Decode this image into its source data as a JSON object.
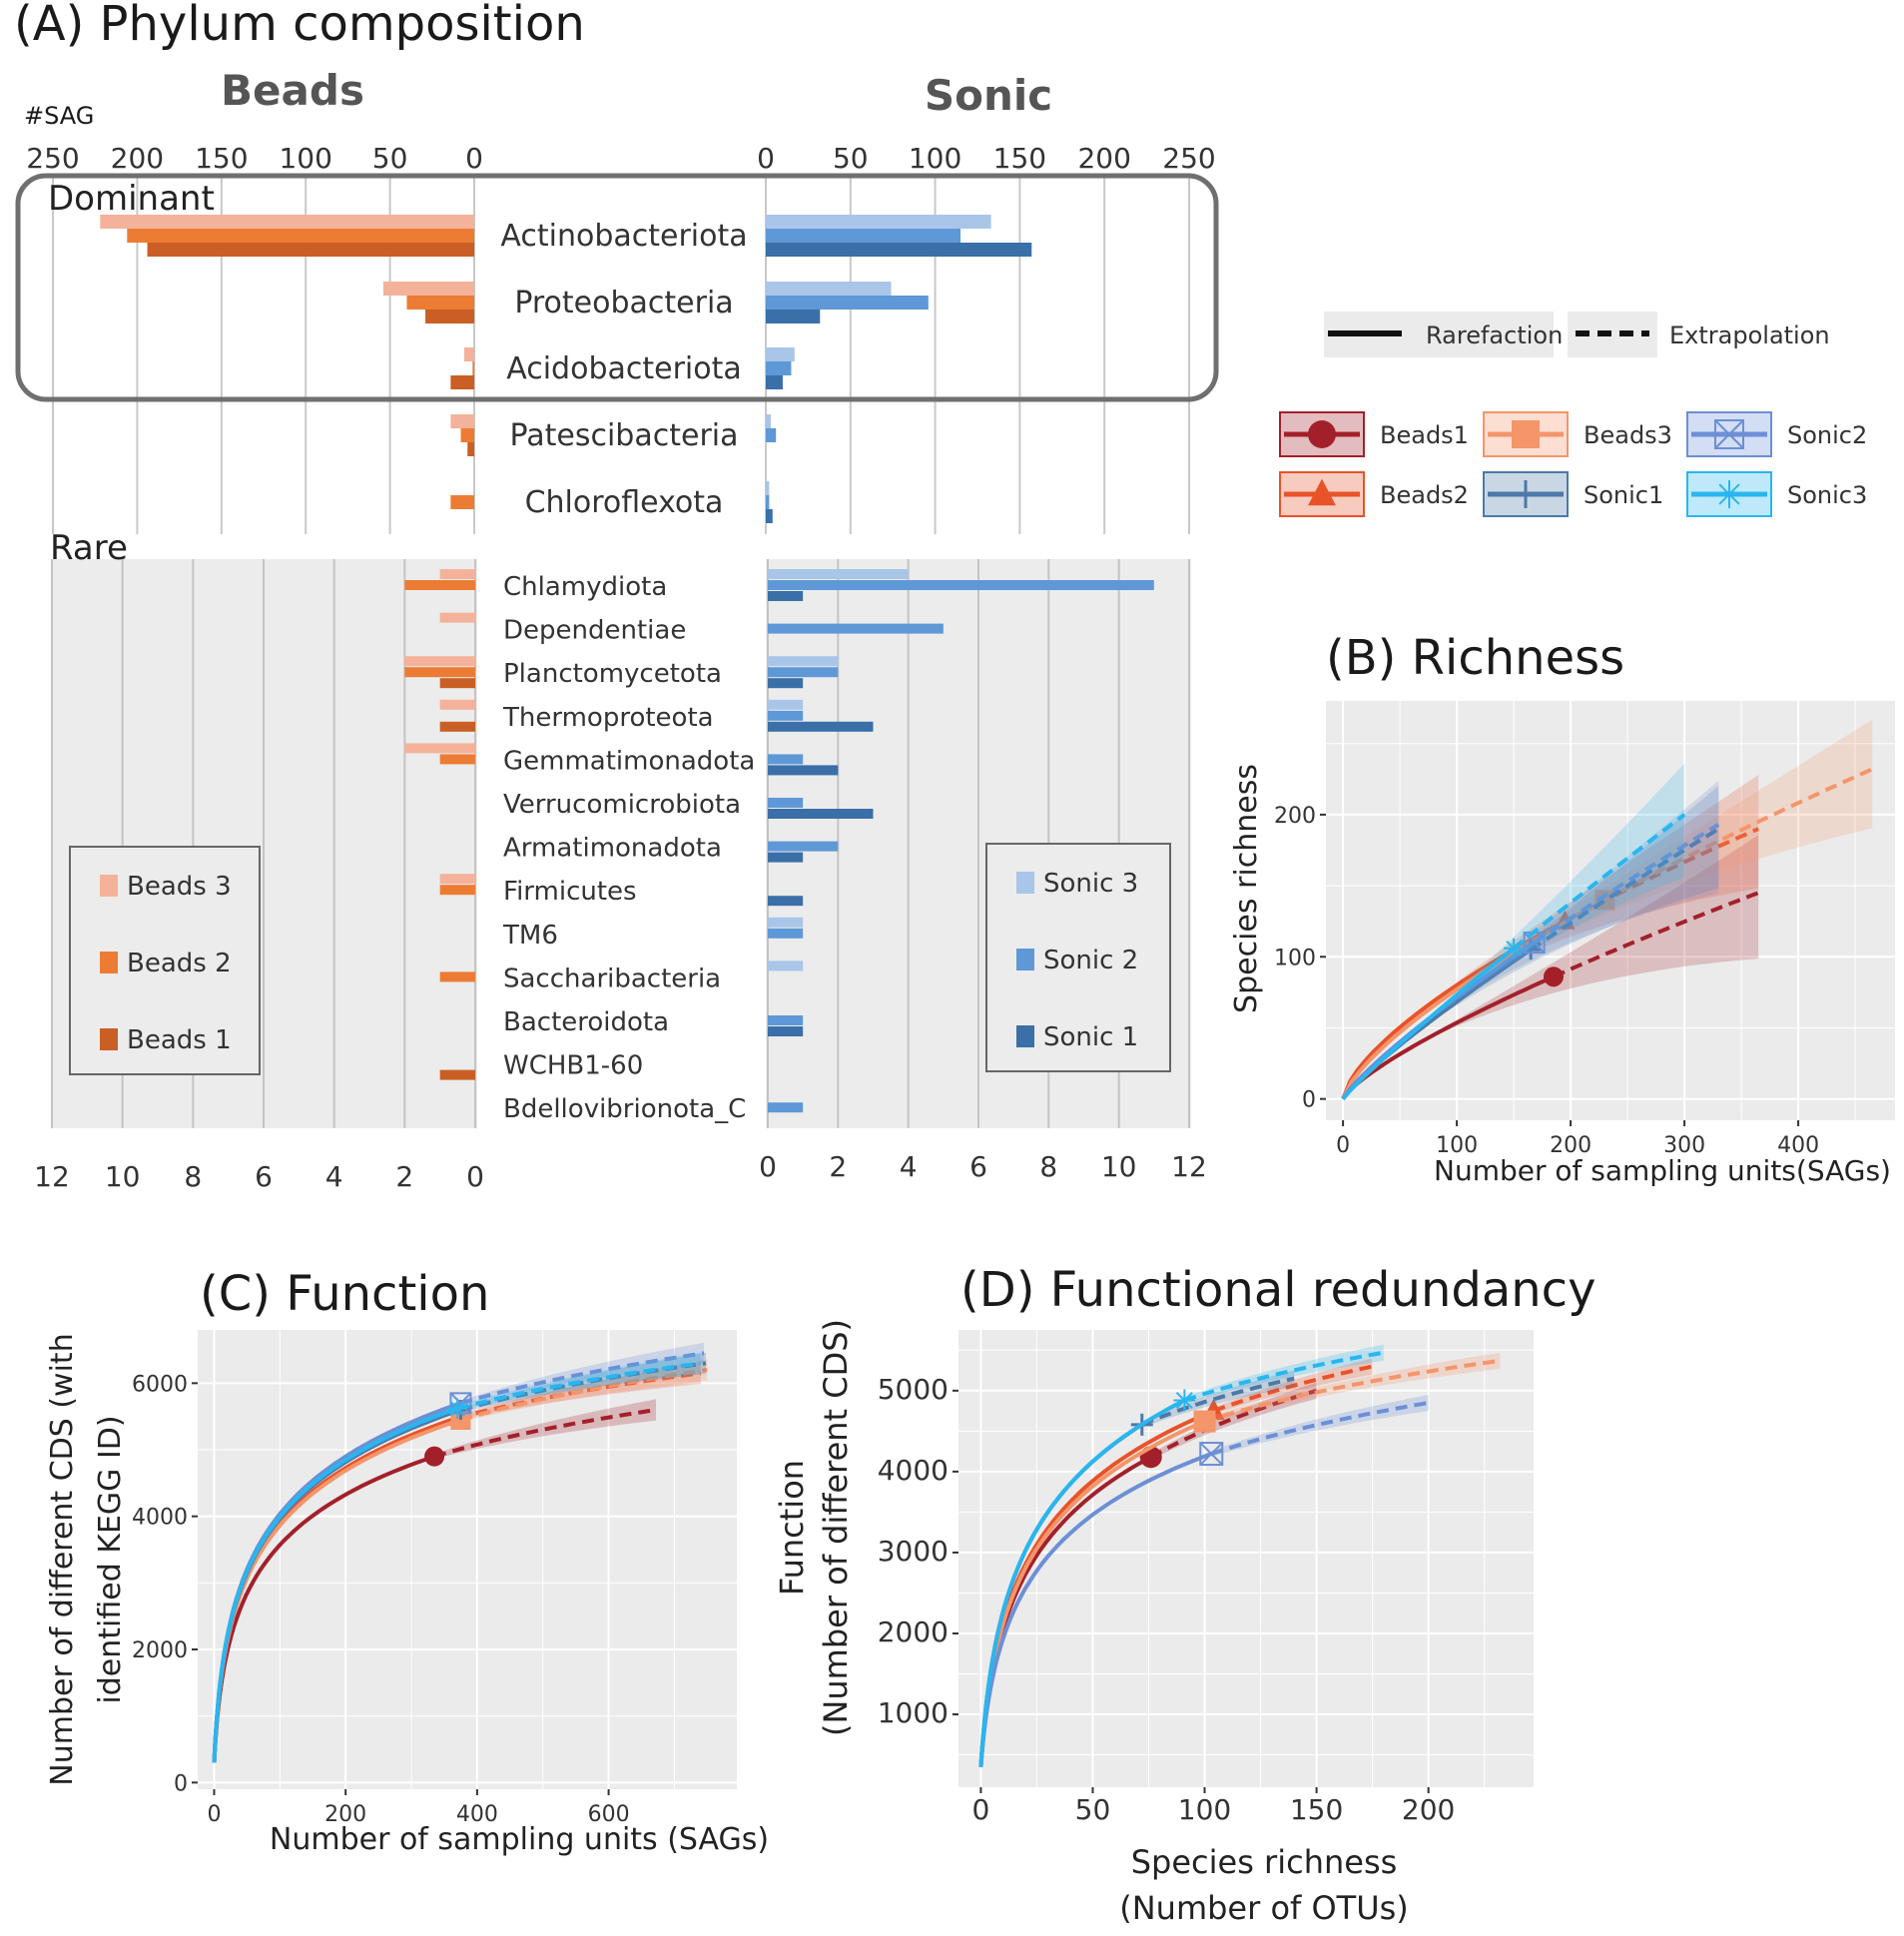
{
  "chart_data": [
    {
      "id": "A",
      "type": "bar",
      "title": "(A) Phylum composition",
      "unit_label": "#SAG",
      "groups": [
        "Beads",
        "Sonic"
      ],
      "sections": [
        "Dominant",
        "Rare"
      ],
      "dominant": {
        "categories": [
          "Actinobacteriota",
          "Proteobacteria",
          "Acidobacteriota",
          "Patescibacteria",
          "Chloroflexota"
        ],
        "ticks": [
          "250",
          "200",
          "150",
          "100",
          "50",
          "0"
        ],
        "ticks_right": [
          "0",
          "50",
          "100",
          "150",
          "200",
          "250"
        ],
        "xlim": [
          0,
          250
        ],
        "beads": {
          "Beads 3": [
            222,
            54,
            6,
            14,
            0
          ],
          "Beads 2": [
            206,
            40,
            1,
            8,
            14
          ],
          "Beads 1": [
            194,
            29,
            14,
            4,
            0
          ]
        },
        "sonic": {
          "Sonic 3": [
            133,
            74,
            17,
            3,
            2
          ],
          "Sonic 2": [
            115,
            96,
            15,
            6,
            2
          ],
          "Sonic 1": [
            157,
            32,
            10,
            0,
            4
          ]
        }
      },
      "rare": {
        "categories": [
          "Chlamydiota",
          "Dependentiae",
          "Planctomycetota",
          "Thermoproteota",
          "Gemmatimonadota",
          "Verrucomicrobiota",
          "Armatimonadota",
          "Firmicutes",
          "TM6",
          "Saccharibacteria",
          "Bacteroidota",
          "WCHB1-60",
          "Bdellovibrionota_C"
        ],
        "ticks": [
          "12",
          "10",
          "8",
          "6",
          "4",
          "2",
          "0"
        ],
        "ticks_right": [
          "0",
          "2",
          "4",
          "6",
          "8",
          "10",
          "12"
        ],
        "xlim": [
          0,
          12
        ],
        "beads": {
          "Beads 3": [
            1,
            1,
            2,
            1,
            2,
            0,
            0,
            1,
            0,
            0,
            0,
            0,
            0
          ],
          "Beads 2": [
            2,
            0,
            2,
            0,
            1,
            0,
            0,
            1,
            0,
            1,
            0,
            0,
            0
          ],
          "Beads 1": [
            0,
            0,
            1,
            1,
            0,
            0,
            0,
            0,
            0,
            0,
            0,
            1,
            0
          ]
        },
        "sonic": {
          "Sonic 3": [
            4,
            0,
            2,
            1,
            0,
            0,
            0,
            0,
            1,
            1,
            0,
            0,
            0
          ],
          "Sonic 2": [
            11,
            5,
            2,
            1,
            1,
            1,
            2,
            0,
            1,
            0,
            1,
            0,
            1
          ],
          "Sonic 1": [
            1,
            0,
            1,
            3,
            2,
            3,
            1,
            1,
            0,
            0,
            1,
            0,
            0
          ]
        }
      },
      "legend_beads": [
        "Beads 3",
        "Beads 2",
        "Beads 1"
      ],
      "legend_sonic": [
        "Sonic 3",
        "Sonic 2",
        "Sonic 1"
      ],
      "colors": {
        "Beads 3": "#f4b29a",
        "Beads 2": "#ec7c33",
        "Beads 1": "#c95f24",
        "Sonic 3": "#a9c5e8",
        "Sonic 2": "#5f98d6",
        "Sonic 1": "#3a6fa8"
      }
    },
    {
      "id": "B",
      "type": "line",
      "title": "(B) Richness",
      "xlabel": "Number of sampling units(SAGs)",
      "ylabel": "Species richness",
      "xlim": [
        -15,
        485
      ],
      "ylim": [
        -15,
        280
      ],
      "xticks": [
        0,
        100,
        200,
        300,
        400
      ],
      "yticks": [
        0,
        100,
        200
      ],
      "series": [
        {
          "name": "Beads1",
          "color": "#a3202a",
          "n": 185,
          "obs": 86,
          "max_x": 365,
          "max_y": 145,
          "lo_frac": 0.32,
          "hi_frac": 0.28
        },
        {
          "name": "Beads2",
          "color": "#e8532a",
          "n": 195,
          "obs": 125,
          "max_x": 365,
          "max_y": 190,
          "lo_frac": 0.22,
          "hi_frac": 0.2
        },
        {
          "name": "Beads3",
          "color": "#f4956a",
          "n": 230,
          "obs": 140,
          "max_x": 465,
          "max_y": 232,
          "lo_frac": 0.18,
          "hi_frac": 0.15
        },
        {
          "name": "Sonic1",
          "color": "#4d79a8",
          "n": 165,
          "obs": 105,
          "max_x": 330,
          "max_y": 190,
          "lo_frac": 0.22,
          "hi_frac": 0.16
        },
        {
          "name": "Sonic2",
          "color": "#6c8fd6",
          "n": 168,
          "obs": 110,
          "max_x": 330,
          "max_y": 193,
          "lo_frac": 0.25,
          "hi_frac": 0.16
        },
        {
          "name": "Sonic3",
          "color": "#29b6ef",
          "n": 150,
          "obs": 106,
          "max_x": 300,
          "max_y": 200,
          "lo_frac": 0.22,
          "hi_frac": 0.18
        }
      ]
    },
    {
      "id": "C",
      "type": "line",
      "title": "(C) Function",
      "xlabel": "Number of sampling units (SAGs)",
      "ylabel_line1": "Number of different CDS (with",
      "ylabel_line2": "identified KEGG ID)",
      "xlim": [
        -25,
        795
      ],
      "ylim": [
        -100,
        6800
      ],
      "xticks": [
        0,
        200,
        400,
        600
      ],
      "yticks": [
        0,
        2000,
        4000,
        6000
      ],
      "series": [
        {
          "name": "Beads1",
          "color": "#a3202a",
          "n": 335,
          "obs": 4900,
          "max_x": 672,
          "max_y": 5600
        },
        {
          "name": "Beads2",
          "color": "#e8532a",
          "n": 370,
          "obs": 5480,
          "max_x": 740,
          "max_y": 6150
        },
        {
          "name": "Beads3",
          "color": "#f4956a",
          "n": 375,
          "obs": 5450,
          "max_x": 750,
          "max_y": 6200
        },
        {
          "name": "Sonic1",
          "color": "#4d79a8",
          "n": 375,
          "obs": 5600,
          "max_x": 748,
          "max_y": 6300
        },
        {
          "name": "Sonic2",
          "color": "#6c8fd6",
          "n": 375,
          "obs": 5700,
          "max_x": 745,
          "max_y": 6450
        },
        {
          "name": "Sonic3",
          "color": "#29b6ef",
          "n": 370,
          "obs": 5620,
          "max_x": 740,
          "max_y": 6300
        }
      ]
    },
    {
      "id": "D",
      "type": "line",
      "title": "(D) Functional redundancy",
      "xlabel_line1": "Species richness",
      "xlabel_line2": "(Number of OTUs)",
      "ylabel_line1": "Function",
      "ylabel_line2": "(Number of different CDS)",
      "xlim": [
        -10,
        247
      ],
      "ylim": [
        100,
        5750
      ],
      "xticks": [
        0,
        50,
        100,
        150,
        200
      ],
      "yticks": [
        1000,
        2000,
        3000,
        4000,
        5000
      ],
      "series": [
        {
          "name": "Beads1",
          "color": "#a3202a",
          "obs_x": 76,
          "obs": 4180,
          "max_x": 150,
          "max_y": 5000
        },
        {
          "name": "Beads2",
          "color": "#e8532a",
          "obs_x": 104,
          "obs": 4750,
          "max_x": 175,
          "max_y": 5300
        },
        {
          "name": "Beads3",
          "color": "#f4956a",
          "obs_x": 100,
          "obs": 4620,
          "max_x": 232,
          "max_y": 5370
        },
        {
          "name": "Sonic1",
          "color": "#4d79a8",
          "obs_x": 72,
          "obs": 4580,
          "max_x": 140,
          "max_y": 5150
        },
        {
          "name": "Sonic2",
          "color": "#6c8fd6",
          "obs_x": 103,
          "obs": 4220,
          "max_x": 200,
          "max_y": 4850
        },
        {
          "name": "Sonic3",
          "color": "#29b6ef",
          "obs_x": 91,
          "obs": 4880,
          "max_x": 180,
          "max_y": 5470
        }
      ]
    }
  ],
  "line_legend": {
    "rarefaction": "Rarefaction",
    "extrapolation": "Extrapolation",
    "items": [
      {
        "name": "Beads1",
        "color": "#a3202a",
        "shape": "circle"
      },
      {
        "name": "Beads3",
        "color": "#f4956a",
        "shape": "square"
      },
      {
        "name": "Sonic2",
        "color": "#6c8fd6",
        "shape": "boxx"
      },
      {
        "name": "Beads2",
        "color": "#e8532a",
        "shape": "triangle"
      },
      {
        "name": "Sonic1",
        "color": "#4d79a8",
        "shape": "plus"
      },
      {
        "name": "Sonic3",
        "color": "#29b6ef",
        "shape": "star"
      }
    ]
  }
}
